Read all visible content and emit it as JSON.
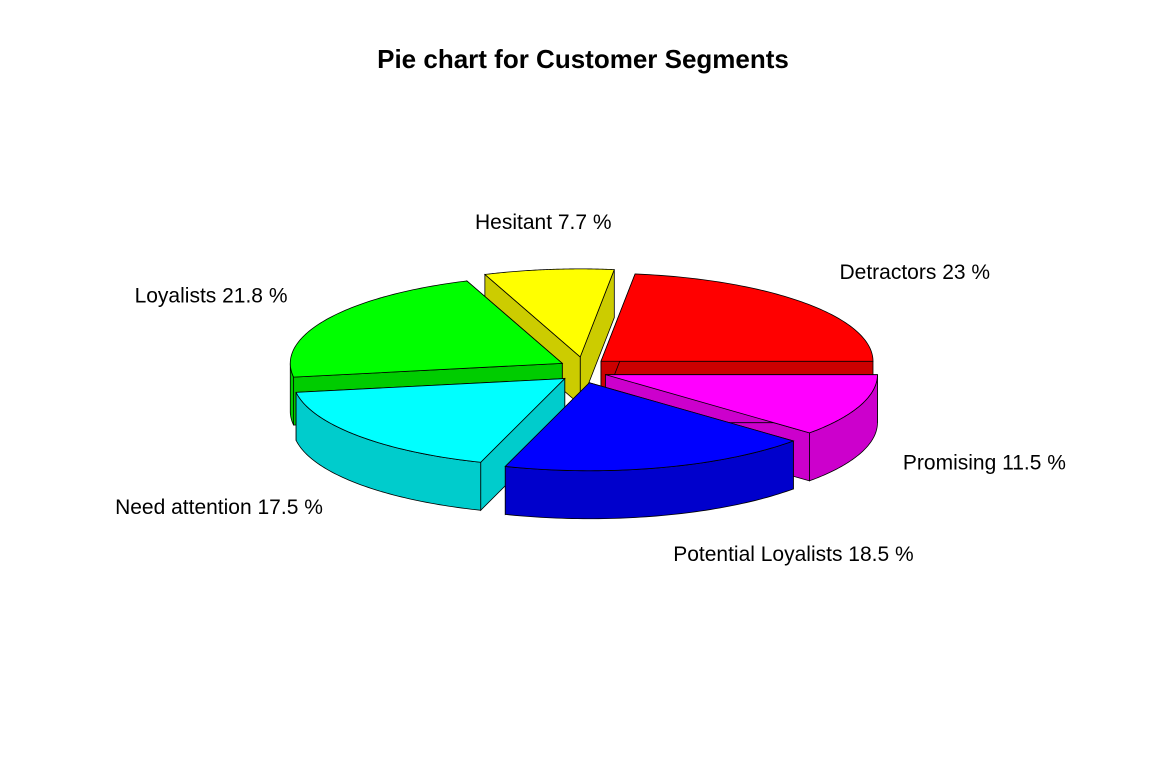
{
  "chart_data": {
    "type": "pie",
    "style": "3d-exploded",
    "title": "Pie chart for Customer Segments",
    "start_angle_deg": 0,
    "direction": "counterclockwise",
    "slices": [
      {
        "label": "Detractors",
        "value": 23,
        "percent_text": "23 %",
        "color": "#ff0000"
      },
      {
        "label": "Hesitant",
        "value": 7.7,
        "percent_text": "7.7 %",
        "color": "#ffff00"
      },
      {
        "label": "Loyalists",
        "value": 21.8,
        "percent_text": "21.8 %",
        "color": "#00ff00"
      },
      {
        "label": "Need attention",
        "value": 17.5,
        "percent_text": "17.5 %",
        "color": "#00ffff"
      },
      {
        "label": "Potential Loyalists",
        "value": 18.5,
        "percent_text": "18.5 %",
        "color": "#0000ff"
      },
      {
        "label": "Promising",
        "value": 11.5,
        "percent_text": "11.5 %",
        "color": "#ff00ff"
      }
    ]
  }
}
